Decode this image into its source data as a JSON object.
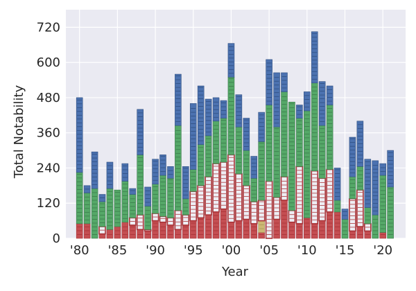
{
  "chart_data": {
    "type": "bar",
    "stacked": true,
    "xlabel": "Year",
    "ylabel": "Total Notability",
    "ylim": [
      0,
      780
    ],
    "xlim": [
      1978.2,
      2023
    ],
    "yticks": [
      0,
      120,
      240,
      360,
      480,
      600,
      720
    ],
    "xticks": [
      1980,
      1985,
      1990,
      1995,
      2000,
      2005,
      2010,
      2015,
      2020
    ],
    "xtick_labels": [
      "'80",
      "'85",
      "'90",
      "'95",
      "'00",
      "'05",
      "'10",
      "'15",
      "'20"
    ],
    "grid": true,
    "legend": "none",
    "background": "#eaeaf2",
    "years": [
      1980,
      1981,
      1982,
      1983,
      1984,
      1985,
      1986,
      1987,
      1988,
      1989,
      1990,
      1991,
      1992,
      1993,
      1994,
      1995,
      1996,
      1997,
      1998,
      1999,
      2000,
      2001,
      2002,
      2003,
      2004,
      2005,
      2006,
      2007,
      2008,
      2009,
      2010,
      2011,
      2012,
      2013,
      2014,
      2015,
      2016,
      2017,
      2018,
      2019,
      2020,
      2021
    ],
    "series": [
      {
        "color": "#c44e52",
        "values": [
          50,
          50,
          0,
          15,
          30,
          40,
          55,
          45,
          30,
          25,
          60,
          55,
          45,
          30,
          45,
          60,
          70,
          80,
          90,
          100,
          55,
          60,
          65,
          50,
          20,
          0,
          65,
          130,
          55,
          50,
          70,
          50,
          60,
          90,
          90,
          0,
          25,
          40,
          25,
          0,
          20,
          0
        ]
      },
      {
        "color": "#ccb974",
        "values": [
          0,
          0,
          0,
          0,
          0,
          0,
          0,
          0,
          0,
          0,
          0,
          0,
          0,
          0,
          0,
          0,
          0,
          0,
          0,
          0,
          0,
          0,
          0,
          0,
          40,
          0,
          0,
          0,
          0,
          0,
          0,
          0,
          0,
          0,
          0,
          0,
          0,
          0,
          0,
          0,
          0,
          0
        ]
      },
      {
        "color": "#eeeef4",
        "values": [
          0,
          0,
          0,
          25,
          0,
          0,
          0,
          25,
          50,
          5,
          25,
          20,
          25,
          65,
          35,
          100,
          110,
          130,
          165,
          160,
          230,
          160,
          115,
          75,
          70,
          195,
          75,
          80,
          40,
          195,
          0,
          180,
          145,
          145,
          0,
          0,
          110,
          125,
          25,
          0,
          0,
          0
        ]
      },
      {
        "color": "#55a868",
        "values": [
          175,
          105,
          170,
          85,
          140,
          125,
          140,
          80,
          205,
          80,
          100,
          140,
          135,
          290,
          55,
          75,
          140,
          140,
          145,
          150,
          265,
          160,
          120,
          80,
          200,
          260,
          240,
          290,
          370,
          165,
          365,
          300,
          180,
          220,
          40,
          65,
          75,
          80,
          55,
          80,
          195,
          175
        ]
      },
      {
        "color": "#4c72b0",
        "values": [
          255,
          25,
          125,
          25,
          90,
          0,
          60,
          20,
          155,
          65,
          85,
          70,
          40,
          175,
          110,
          225,
          200,
          125,
          80,
          60,
          115,
          110,
          110,
          75,
          100,
          155,
          185,
          65,
          0,
          45,
          65,
          175,
          150,
          65,
          110,
          35,
          135,
          155,
          165,
          185,
          40,
          125
        ]
      }
    ]
  }
}
